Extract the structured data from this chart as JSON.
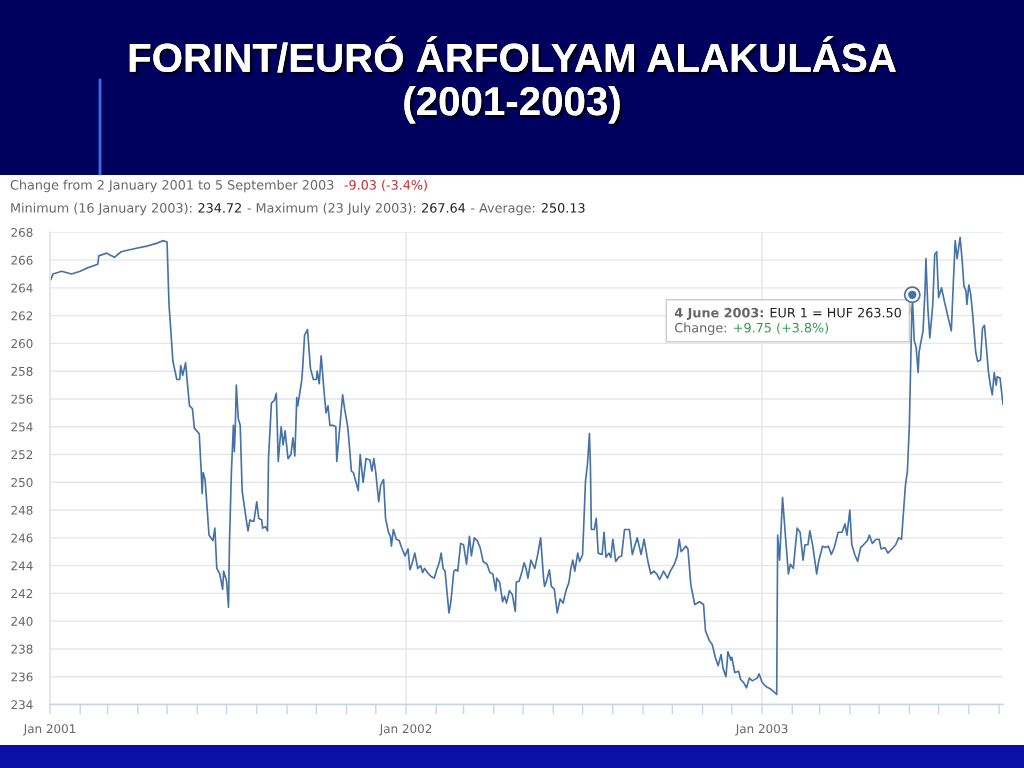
{
  "chart_data": {
    "type": "line",
    "title": "FORINT/EURÓ ÁRFOLYAM ALAKULÁSA\n(2001-2003)",
    "subtitle": "Change from 2 January 2001 to 5 September 2003",
    "annotations": [
      "-9.03 (-3.4%)",
      "Minimum (16 January 2003):",
      "234.72",
      "- Maximum (23 July 2003):",
      "267.64",
      "- Average:",
      "250.13",
      "4 June 2003:",
      {
        "text": "EUR 1 = HUF 263.50",
        "x": "2003-06-04",
        "y": 263.5
      },
      "Change:",
      "+9.75 (+3.8%)"
    ],
    "color": "#4572a7",
    "x": [
      "2001-01-02",
      "2001-01-04",
      "2001-01-13",
      "2001-01-23",
      "2001-02-01",
      "2001-02-07",
      "2001-02-19",
      "2001-02-20",
      "2001-02-28",
      "2001-03-08",
      "2001-03-15",
      "2001-03-27",
      "2001-04-10",
      "2001-04-20",
      "2001-04-27",
      "2001-05-01",
      "2001-05-03",
      "2001-05-04",
      "2001-05-07",
      "2001-05-08",
      "2001-05-11",
      "2001-05-14",
      "2001-05-15",
      "2001-05-17",
      "2001-05-20",
      "2001-05-22",
      "2001-05-24",
      "2001-05-27",
      "2001-05-29",
      "2001-06-03",
      "2001-06-05",
      "2001-06-06",
      "2001-06-07",
      "2001-06-09",
      "2001-06-13",
      "2001-06-17",
      "2001-06-19",
      "2001-06-21",
      "2001-06-24",
      "2001-06-27",
      "2001-06-28",
      "2001-07-01",
      "2001-07-03",
      "2001-07-04",
      "2001-07-06",
      "2001-07-08",
      "2001-07-09",
      "2001-07-10",
      "2001-07-11",
      "2001-07-13",
      "2001-07-15",
      "2001-07-17",
      "2001-07-18",
      "2001-07-21",
      "2001-07-23",
      "2001-07-25",
      "2001-07-27",
      "2001-07-29",
      "2001-08-01",
      "2001-08-03",
      "2001-08-06",
      "2001-08-07",
      "2001-08-10",
      "2001-08-12",
      "2001-08-13",
      "2001-08-16",
      "2001-08-19",
      "2001-08-21",
      "2001-08-23",
      "2001-08-26",
      "2001-08-28",
      "2001-08-30",
      "2001-09-02",
      "2001-09-05",
      "2001-09-07",
      "2001-09-09",
      "2001-09-11",
      "2001-09-12",
      "2001-09-16",
      "2001-09-17",
      "2001-09-19",
      "2001-09-22",
      "2001-09-25",
      "2001-09-28",
      "2001-10-01",
      "2001-10-02",
      "2001-10-04",
      "2001-10-06",
      "2001-10-09",
      "2001-10-11",
      "2001-10-13",
      "2001-10-15",
      "2001-10-18",
      "2001-10-21",
      "2001-10-22",
      "2001-10-28",
      "2001-10-30",
      "2001-11-02",
      "2001-11-03",
      "2001-11-06",
      "2001-11-08",
      "2001-11-13",
      "2001-11-15",
      "2001-11-18",
      "2001-11-21",
      "2001-11-25",
      "2001-11-27",
      "2001-11-29",
      "2001-12-01",
      "2001-12-04",
      "2001-12-06",
      "2001-12-09",
      "2001-12-11",
      "2001-12-14",
      "2001-12-16",
      "2001-12-17",
      "2001-12-19",
      "2001-12-22",
      "2001-12-25",
      "2001-12-28",
      "2001-12-31",
      "2002-01-03",
      "2002-01-05",
      "2002-01-07",
      "2002-01-10",
      "2002-01-13",
      "2002-01-16",
      "2002-01-18",
      "2002-01-20",
      "2002-01-23",
      "2002-01-27",
      "2002-01-30",
      "2002-02-01",
      "2002-02-04",
      "2002-02-06",
      "2002-02-08",
      "2002-02-10",
      "2002-02-14",
      "2002-02-16",
      "2002-02-19",
      "2002-02-21",
      "2002-02-23",
      "2002-02-26",
      "2002-03-01",
      "2002-03-04",
      "2002-03-07",
      "2002-03-09",
      "2002-03-12",
      "2002-03-15",
      "2002-03-18",
      "2002-03-21",
      "2002-03-25",
      "2002-03-28",
      "2002-03-31",
      "2002-04-03",
      "2002-04-04",
      "2002-04-07",
      "2002-04-10",
      "2002-04-12",
      "2002-04-14",
      "2002-04-17",
      "2002-04-20",
      "2002-04-23",
      "2002-04-24",
      "2002-04-27",
      "2002-04-30",
      "2002-05-02",
      "2002-05-04",
      "2002-05-06",
      "2002-05-09",
      "2002-05-11",
      "2002-05-13",
      "2002-05-16",
      "2002-05-19",
      "2002-05-22",
      "2002-05-23",
      "2002-05-25",
      "2002-05-28",
      "2002-05-30",
      "2002-06-02",
      "2002-06-05",
      "2002-06-08",
      "2002-06-11",
      "2002-06-14",
      "2002-06-17",
      "2002-06-19",
      "2002-06-21",
      "2002-06-23",
      "2002-06-26",
      "2002-06-28",
      "2002-07-01",
      "2002-07-04",
      "2002-07-06",
      "2002-07-08",
      "2002-07-09",
      "2002-07-10",
      "2002-07-13",
      "2002-07-15",
      "2002-07-17",
      "2002-07-21",
      "2002-07-23",
      "2002-07-25",
      "2002-07-28",
      "2002-07-30",
      "2002-08-01",
      "2002-08-04",
      "2002-08-07",
      "2002-08-10",
      "2002-08-13",
      "2002-08-18",
      "2002-08-21",
      "2002-08-23",
      "2002-08-26",
      "2002-08-30",
      "2002-09-02",
      "2002-09-06",
      "2002-09-09",
      "2002-09-12",
      "2002-09-15",
      "2002-09-18",
      "2002-09-22",
      "2002-09-26",
      "2002-09-29",
      "2002-10-03",
      "2002-10-06",
      "2002-10-08",
      "2002-10-10",
      "2002-10-15",
      "2002-10-17",
      "2002-10-20",
      "2002-10-22",
      "2002-10-24",
      "2002-10-29",
      "2002-11-02",
      "2002-11-04",
      "2002-11-08",
      "2002-11-11",
      "2002-11-14",
      "2002-11-17",
      "2002-11-20",
      "2002-11-22",
      "2002-11-25",
      "2002-11-27",
      "2002-11-30",
      "2002-12-01",
      "2002-12-04",
      "2002-12-08",
      "2002-12-10",
      "2002-12-13",
      "2002-12-16",
      "2002-12-19",
      "2002-12-22",
      "2002-12-27",
      "2002-12-29",
      "2003-01-01",
      "2003-01-05",
      "2003-01-10",
      "2003-01-16",
      "2003-01-17",
      "2003-01-19",
      "2003-01-22",
      "2003-01-25",
      "2003-01-28",
      "2003-01-30",
      "2003-02-02",
      "2003-02-06",
      "2003-02-09",
      "2003-02-12",
      "2003-02-14",
      "2003-02-17",
      "2003-02-19",
      "2003-02-22",
      "2003-02-26",
      "2003-02-28",
      "2003-03-04",
      "2003-03-07",
      "2003-03-10",
      "2003-03-13",
      "2003-03-16",
      "2003-03-20",
      "2003-03-24",
      "2003-03-27",
      "2003-03-29",
      "2003-04-01",
      "2003-04-03",
      "2003-04-06",
      "2003-04-09",
      "2003-04-12",
      "2003-04-15",
      "2003-04-19",
      "2003-04-21",
      "2003-04-24",
      "2003-04-28",
      "2003-05-01",
      "2003-05-03",
      "2003-05-07",
      "2003-05-10",
      "2003-05-14",
      "2003-05-18",
      "2003-05-21",
      "2003-05-24",
      "2003-05-26",
      "2003-05-28",
      "2003-05-30",
      "2003-06-01",
      "2003-06-03",
      "2003-06-04",
      "2003-06-06",
      "2003-06-08",
      "2003-06-10",
      "2003-06-11",
      "2003-06-15",
      "2003-06-17",
      "2003-06-18",
      "2003-06-20",
      "2003-06-22",
      "2003-06-25",
      "2003-06-27",
      "2003-06-29",
      "2003-07-01",
      "2003-07-04",
      "2003-07-07",
      "2003-07-11",
      "2003-07-14",
      "2003-07-16",
      "2003-07-18",
      "2003-07-20",
      "2003-07-23",
      "2003-07-25",
      "2003-07-27",
      "2003-07-29",
      "2003-07-30",
      "2003-08-01",
      "2003-08-03",
      "2003-08-05",
      "2003-08-08",
      "2003-08-10",
      "2003-08-13",
      "2003-08-15",
      "2003-08-17",
      "2003-08-19",
      "2003-08-21",
      "2003-08-23",
      "2003-08-25",
      "2003-08-27",
      "2003-08-29",
      "2003-08-30",
      "2003-09-02",
      "2003-09-05"
    ],
    "values": [
      264.6,
      265.0,
      265.2,
      265.0,
      265.2,
      265.4,
      265.7,
      266.3,
      266.5,
      266.2,
      266.6,
      266.8,
      267.0,
      267.2,
      267.4,
      267.3,
      262.8,
      261.8,
      258.7,
      258.4,
      257.4,
      257.4,
      258.4,
      257.7,
      258.6,
      257.0,
      255.5,
      255.3,
      253.9,
      253.5,
      250.8,
      249.2,
      250.7,
      250.2,
      246.2,
      245.8,
      246.7,
      243.8,
      243.4,
      242.3,
      243.6,
      242.9,
      241.0,
      245.7,
      250.8,
      254.1,
      252.2,
      254.1,
      257.0,
      254.6,
      254.1,
      249.4,
      248.9,
      247.4,
      246.5,
      247.3,
      247.2,
      247.2,
      248.6,
      247.4,
      247.3,
      246.7,
      246.8,
      246.5,
      251.7,
      255.7,
      255.9,
      256.4,
      251.5,
      254.0,
      252.7,
      253.7,
      251.7,
      252.0,
      253.2,
      251.9,
      256.1,
      255.5,
      257.3,
      258.2,
      260.6,
      261.0,
      258.2,
      257.4,
      257.4,
      258.0,
      257.1,
      259.1,
      256.5,
      255.0,
      255.5,
      254.1,
      254.1,
      254.0,
      251.5,
      256.3,
      255.3,
      254.1,
      253.4,
      250.8,
      250.7,
      249.4,
      252.0,
      250.0,
      251.7,
      251.6,
      250.8,
      251.7,
      250.7,
      248.6,
      249.8,
      250.2,
      247.4,
      246.4,
      246.1,
      245.4,
      246.6,
      245.9,
      245.8,
      245.2,
      244.7,
      245.2,
      243.7,
      244.1,
      244.9,
      243.8,
      244.0,
      243.5,
      243.8,
      243.5,
      243.2,
      243.1,
      243.6,
      244.2,
      244.9,
      243.8,
      243.6,
      240.6,
      241.4,
      243.6,
      243.7,
      243.6,
      245.6,
      245.5,
      244.1,
      246.1,
      244.7,
      246.0,
      245.8,
      245.3,
      244.3,
      244.1,
      243.5,
      243.4,
      242.2,
      243.1,
      242.8,
      241.4,
      241.8,
      241.3,
      242.2,
      241.9,
      240.7,
      242.8,
      242.9,
      243.6,
      244.2,
      243.8,
      243.1,
      244.4,
      244.1,
      243.8,
      244.8,
      246.0,
      243.1,
      242.5,
      242.9,
      243.7,
      242.5,
      242.3,
      240.6,
      241.6,
      241.3,
      242.2,
      242.8,
      243.8,
      244.4,
      243.6,
      244.9,
      244.3,
      244.8,
      250.1,
      251.3,
      253.5,
      251.3,
      246.6,
      246.6,
      247.4,
      244.9,
      244.8,
      246.4,
      244.6,
      244.9,
      244.6,
      245.9,
      244.3,
      244.6,
      244.7,
      246.6,
      246.6,
      244.8,
      245.3,
      246.0,
      244.8,
      245.9,
      244.3,
      243.4,
      243.6,
      243.4,
      243.0,
      243.6,
      243.1,
      243.6,
      244.1,
      244.7,
      245.9,
      245.0,
      245.4,
      245.2,
      242.6,
      241.9,
      241.2,
      241.4,
      241.2,
      239.3,
      238.6,
      238.3,
      237.4,
      236.8,
      237.6,
      236.6,
      236.0,
      237.8,
      237.2,
      237.4,
      236.3,
      236.4,
      235.8,
      235.6,
      235.2,
      235.9,
      235.7,
      235.9,
      236.2,
      235.6,
      235.3,
      235.1,
      234.72,
      246.2,
      244.4,
      248.9,
      246.1,
      243.4,
      244.1,
      243.8,
      246.7,
      246.4,
      244.4,
      245.5,
      245.5,
      246.5,
      245.4,
      243.4,
      244.3,
      245.4,
      245.3,
      245.4,
      244.8,
      245.3,
      246.4,
      246.4,
      247.0,
      246.2,
      248.0,
      245.5,
      244.8,
      244.3,
      245.3,
      245.5,
      245.8,
      246.2,
      245.6,
      245.9,
      245.9,
      245.2,
      245.3,
      244.9,
      245.2,
      245.5,
      246.0,
      245.9,
      247.9,
      249.8,
      250.8,
      254.1,
      260.6,
      263.5,
      260.2,
      259.7,
      257.9,
      259.4,
      260.9,
      263.7,
      266.1,
      262.5,
      260.4,
      262.8,
      266.4,
      266.6,
      263.3,
      264.0,
      263.0,
      261.8,
      260.9,
      264.2,
      267.4,
      266.1,
      267.64,
      266.1,
      264.1,
      263.8,
      262.8,
      264.2,
      263.5,
      262.0,
      259.4,
      258.7,
      258.8,
      261.1,
      261.3,
      259.7,
      258.0,
      257.0,
      256.3,
      257.9,
      257.0,
      257.6,
      257.5,
      255.6
    ],
    "xlim": [
      "2001-01-01",
      "2003-09-05"
    ],
    "ylim": [
      234,
      268
    ],
    "xticks": [
      {
        "value": "2001-01",
        "label": "Jan 2001"
      },
      {
        "value": "2002-01",
        "label": "Jan 2002"
      },
      {
        "value": "2003-01",
        "label": "Jan 2003"
      }
    ],
    "yticks": [
      234,
      236,
      238,
      240,
      242,
      244,
      246,
      248,
      250,
      252,
      254,
      256,
      258,
      260,
      262,
      264,
      266,
      268
    ],
    "grid": true
  }
}
